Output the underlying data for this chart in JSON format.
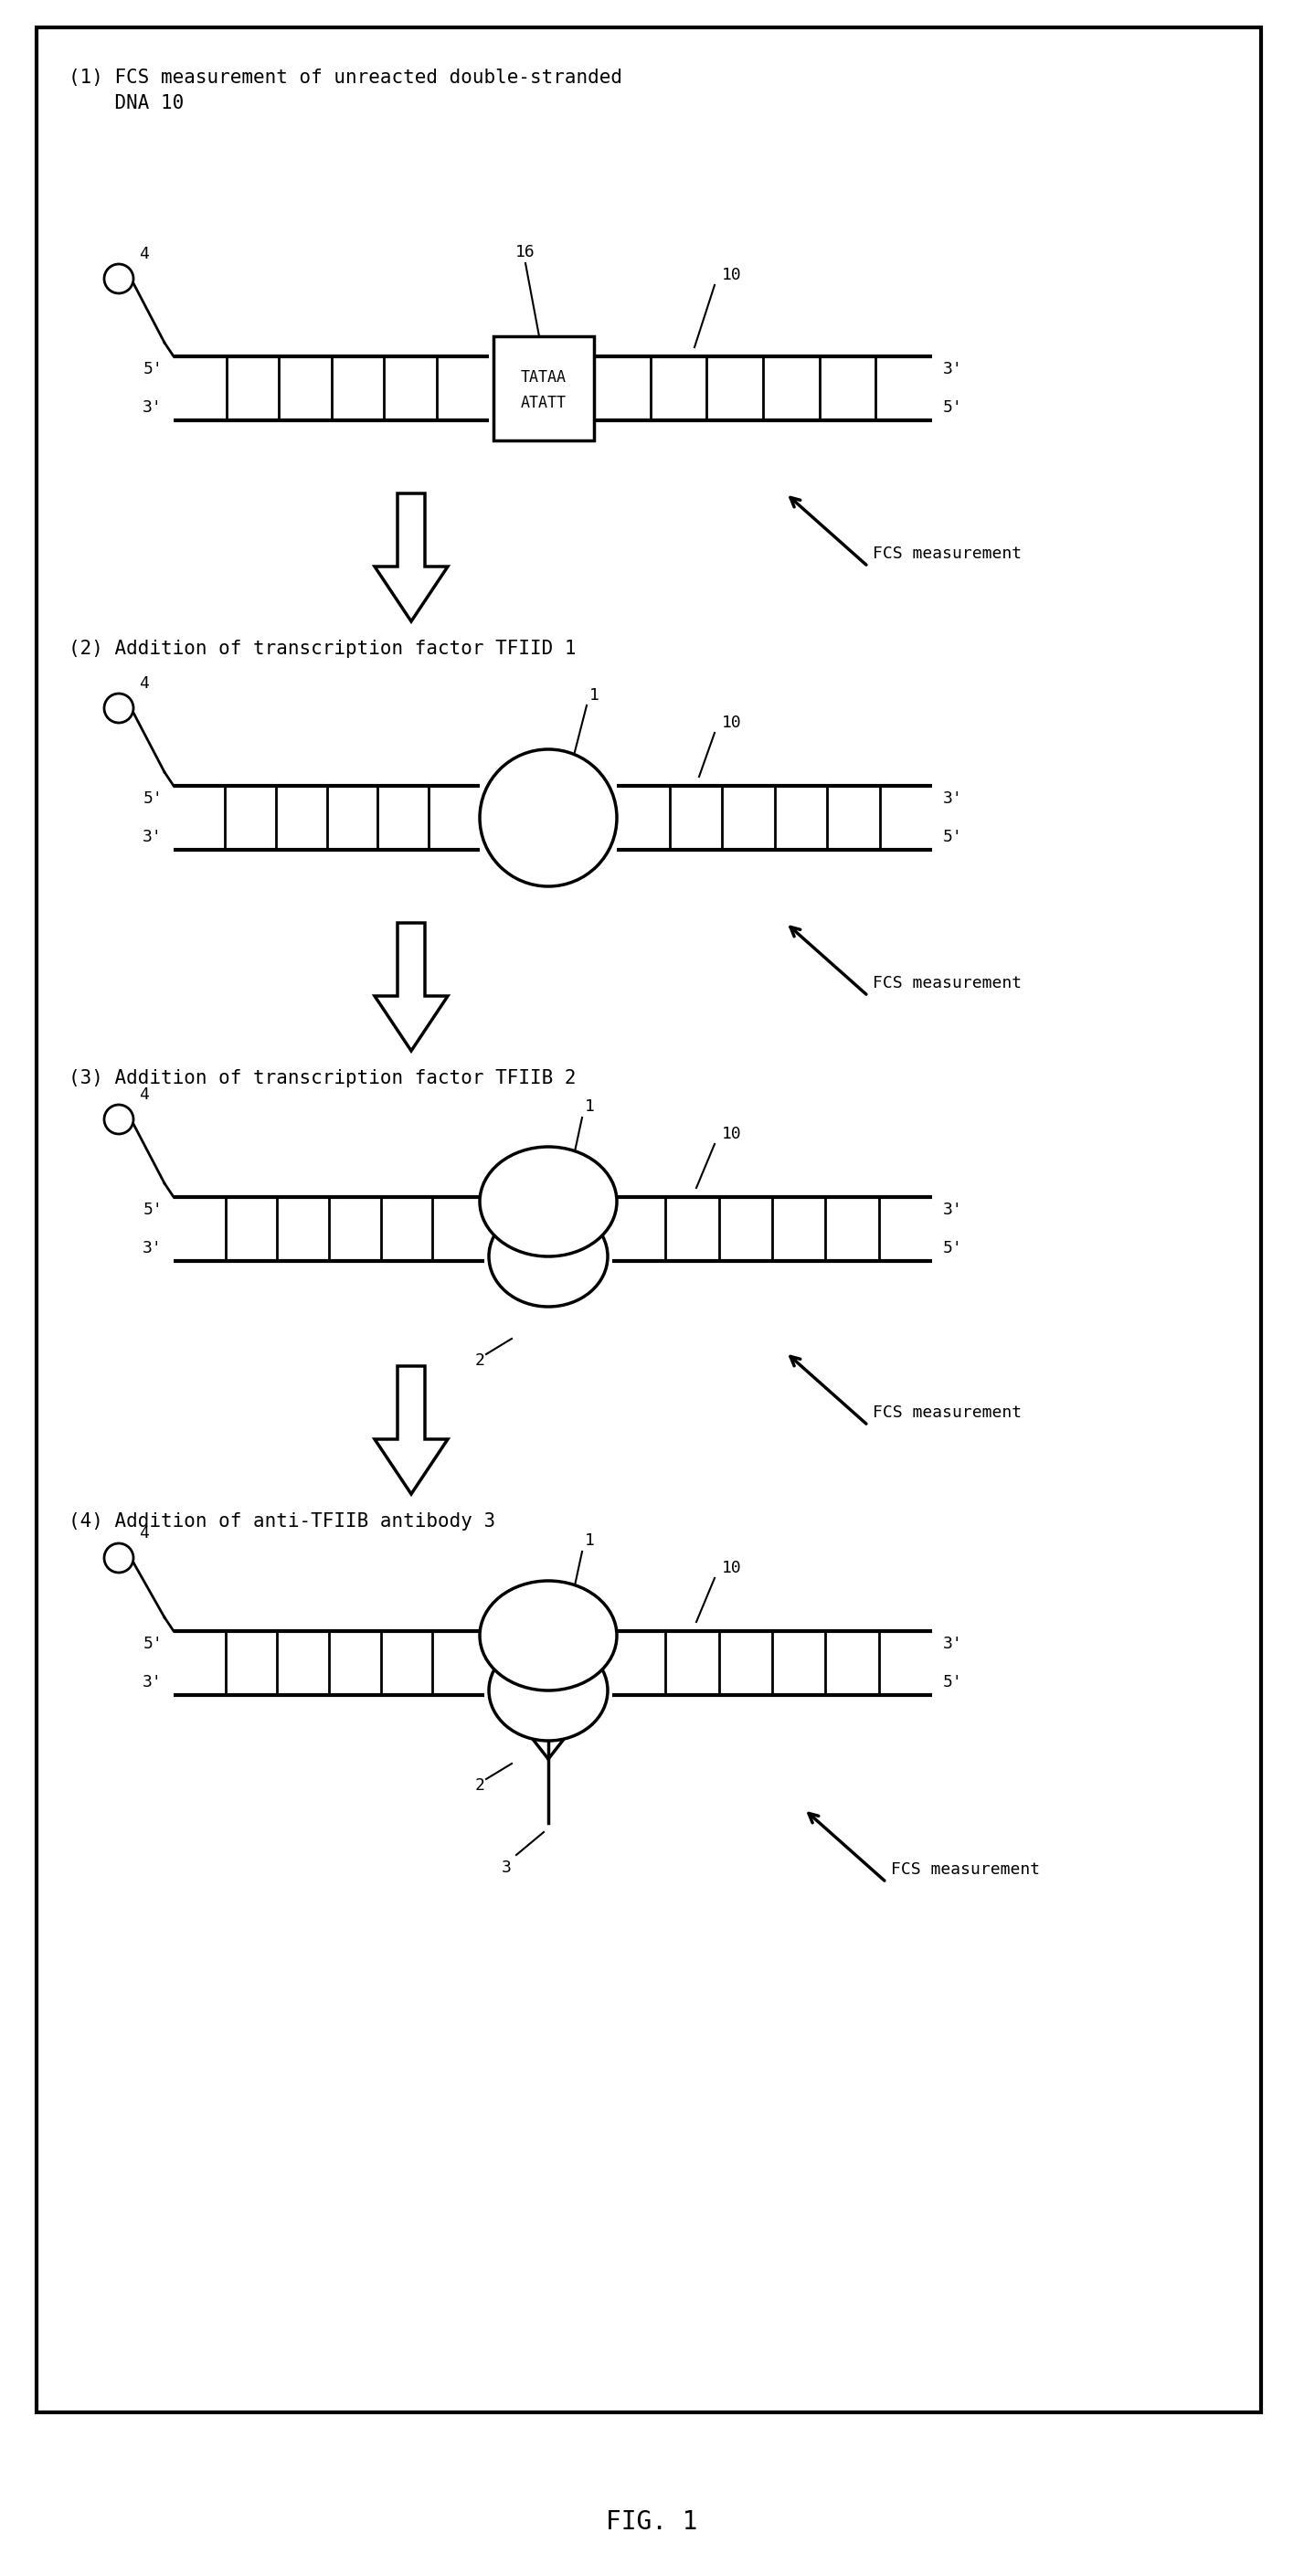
{
  "title": "FIG. 1",
  "panel1_title_line1": "(1) FCS measurement of unreacted double-stranded",
  "panel1_title_line2": "    DNA 10",
  "panel2_title": "(2) Addition of transcription factor TFIID 1",
  "panel3_title": "(3) Addition of transcription factor TFIIB 2",
  "panel4_title": "(4) Addition of anti-TFIIB antibody 3",
  "fcs_label": "FCS measurement",
  "bg_color": "#ffffff",
  "border_color": "#000000",
  "font_size_title": 15,
  "font_size_label": 13,
  "font_size_fig": 20
}
